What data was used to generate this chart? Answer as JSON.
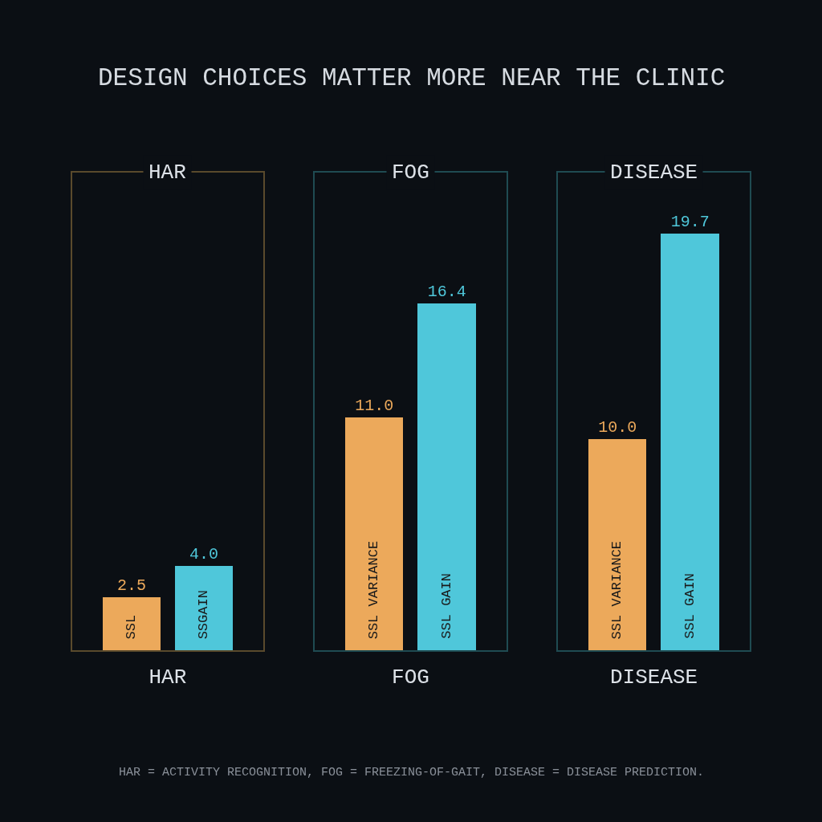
{
  "chart_data": [
    {
      "type": "bar",
      "title": "DESIGN CHOICES MATTER MORE NEAR THE CLINIC",
      "subtitle": "HAR",
      "xlabel": "HAR",
      "categories": [
        "SSL",
        "SSGAIN"
      ],
      "values": [
        2.5,
        4.0
      ],
      "value_labels": [
        "2.5",
        "4.0"
      ],
      "colors": [
        "#eca95b",
        "#4fc7da"
      ],
      "ylim": [
        0,
        22.6
      ],
      "tick_labels": false
    },
    {
      "type": "bar",
      "subtitle": "FOG",
      "xlabel": "FOG",
      "categories": [
        "SSL VARIANCE",
        "SSL GAIN"
      ],
      "values": [
        11.0,
        16.4
      ],
      "value_labels": [
        "11.0",
        "16.4"
      ],
      "colors": [
        "#eca95b",
        "#4fc7da"
      ],
      "ylim": [
        0,
        22.6
      ],
      "tick_labels": false
    },
    {
      "type": "bar",
      "subtitle": "DISEASE",
      "xlabel": "DISEASE",
      "categories": [
        "SSL VARIANCE",
        "SSL GAIN"
      ],
      "values": [
        10.0,
        19.7
      ],
      "value_labels": [
        "10.0",
        "19.7"
      ],
      "colors": [
        "#eca95b",
        "#4fc7da"
      ],
      "ylim": [
        0,
        22.6
      ],
      "tick_labels": false,
      "annotations": [
        "HAR = ACTIVITY RECOGNITION, FOG = FREEZING-OF-GAIT, DISEASE = DISEASE PREDICTION."
      ]
    }
  ]
}
